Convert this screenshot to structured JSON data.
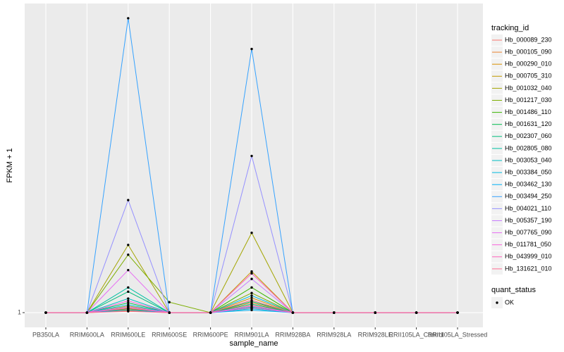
{
  "chart_data": {
    "type": "line",
    "x_label": "sample_name",
    "y_label": "FPKM + 1",
    "legend_title": "tracking_id",
    "point_legend_title": "quant_status",
    "point_legend_label": "OK",
    "point_color": "#000000",
    "categories": [
      "PB350LA",
      "RRIM600LA",
      "RRIM600LE",
      "RRIM600SE",
      "RRIM600PE",
      "RRIM901LA",
      "RRIM928BA",
      "RRIM928LA",
      "RRIM928LE",
      "RRII105LA_Control",
      "RRII105LA_Stressed"
    ],
    "ylim": [
      -3.5,
      95.5
    ],
    "yticks": [
      1
    ],
    "grid": true,
    "series": [
      {
        "name": "Hb_000089_230",
        "color": "#F8766D",
        "values": [
          1,
          1,
          2.0,
          1,
          1,
          3.2,
          1,
          1,
          1,
          1,
          1
        ]
      },
      {
        "name": "Hb_000105_090",
        "color": "#EA8331",
        "values": [
          1,
          1,
          2.5,
          1,
          1,
          4.0,
          1,
          1,
          1,
          1,
          1
        ]
      },
      {
        "name": "Hb_000290_010",
        "color": "#D89000",
        "values": [
          1,
          1,
          1.6,
          1,
          1,
          5.5,
          1,
          1,
          1,
          1,
          1
        ]
      },
      {
        "name": "Hb_000705_310",
        "color": "#C09B00",
        "values": [
          1,
          1,
          3.0,
          1,
          1,
          13.6,
          1,
          1,
          1,
          1,
          1
        ]
      },
      {
        "name": "Hb_001032_040",
        "color": "#A3A500",
        "values": [
          1,
          1,
          21.7,
          1,
          1,
          25.4,
          1,
          1,
          1,
          1,
          1
        ]
      },
      {
        "name": "Hb_001217_030",
        "color": "#7CAE00",
        "values": [
          1,
          1,
          18.7,
          4.2,
          1,
          7.0,
          1,
          1,
          1,
          1,
          1
        ]
      },
      {
        "name": "Hb_001486_110",
        "color": "#39B600",
        "values": [
          1,
          1,
          2.2,
          1,
          1,
          8.7,
          1,
          1,
          1,
          1,
          1
        ]
      },
      {
        "name": "Hb_001631_120",
        "color": "#00BB4E",
        "values": [
          1,
          1,
          4.0,
          1,
          1,
          4.4,
          1,
          1,
          1,
          1,
          1
        ]
      },
      {
        "name": "Hb_002307_060",
        "color": "#00BF7D",
        "values": [
          1,
          1,
          7.4,
          1,
          1,
          3.6,
          1,
          1,
          1,
          1,
          1
        ]
      },
      {
        "name": "Hb_002805_080",
        "color": "#00C1A3",
        "values": [
          1,
          1,
          8.7,
          1,
          1,
          2.7,
          1,
          1,
          1,
          1,
          1
        ]
      },
      {
        "name": "Hb_003053_040",
        "color": "#00BFC4",
        "values": [
          1,
          1,
          5.3,
          1,
          1,
          2.2,
          1,
          1,
          1,
          1,
          1
        ]
      },
      {
        "name": "Hb_003384_050",
        "color": "#00BAE0",
        "values": [
          1,
          1,
          3.4,
          1,
          1,
          6.2,
          1,
          1,
          1,
          1,
          1
        ]
      },
      {
        "name": "Hb_003462_130",
        "color": "#00B0F6",
        "values": [
          1,
          1,
          1.8,
          1,
          1,
          1.8,
          1,
          1,
          1,
          1,
          1
        ]
      },
      {
        "name": "Hb_003494_250",
        "color": "#35A2FF",
        "values": [
          1,
          1,
          91,
          1,
          1,
          81.6,
          1,
          1,
          1,
          1,
          1
        ]
      },
      {
        "name": "Hb_004021_110",
        "color": "#9590FF",
        "values": [
          1,
          1,
          35.4,
          1,
          1,
          48.9,
          1,
          1,
          1,
          1,
          1
        ]
      },
      {
        "name": "Hb_005357_190",
        "color": "#C77CFF",
        "values": [
          1,
          1,
          2.8,
          1,
          1,
          11.3,
          1,
          1,
          1,
          1,
          1
        ]
      },
      {
        "name": "Hb_007765_090",
        "color": "#E76BF3",
        "values": [
          1,
          1,
          14,
          1,
          1,
          3.0,
          1,
          1,
          1,
          1,
          1
        ]
      },
      {
        "name": "Hb_011781_050",
        "color": "#FA62DB",
        "values": [
          1,
          1,
          4.6,
          1,
          1,
          2.5,
          1,
          1,
          1,
          1,
          1
        ]
      },
      {
        "name": "Hb_043999_010",
        "color": "#FF62BC",
        "values": [
          1,
          1,
          2.4,
          1,
          1,
          13.0,
          1,
          1,
          1,
          1,
          1
        ]
      },
      {
        "name": "Hb_131621_010",
        "color": "#FF6C91",
        "values": [
          1,
          1,
          1.4,
          1,
          1,
          4.8,
          1,
          1,
          1,
          1,
          1
        ]
      }
    ]
  }
}
